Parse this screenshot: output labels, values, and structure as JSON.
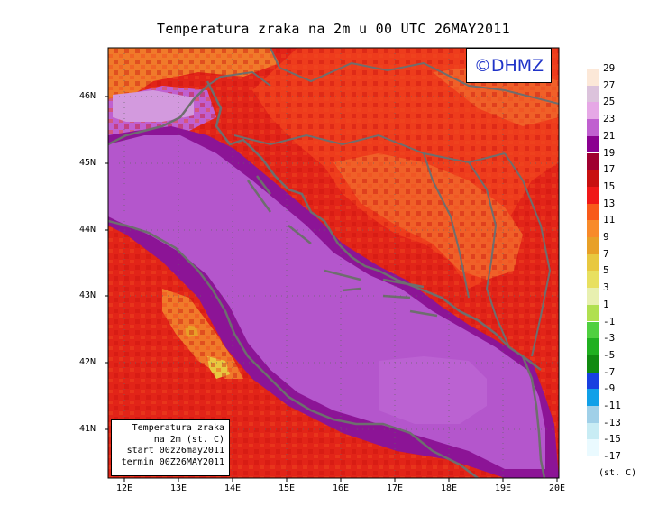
{
  "title": "Temperatura zraka na 2m u 00 UTC 26MAY2011",
  "logo": "©DHMZ",
  "info_box": {
    "line1": "Temperatura zraka",
    "line2": "na 2m (st. C)",
    "line3": "start 00z26may2011",
    "line4": "termin 00Z26MAY2011"
  },
  "latitude_labels": [
    "46N",
    "45N",
    "44N",
    "43N",
    "42N",
    "41N"
  ],
  "longitude_labels": [
    "12E",
    "13E",
    "14E",
    "15E",
    "16E",
    "17E",
    "18E",
    "19E",
    "20E"
  ],
  "legend": {
    "unit": "(st. C)",
    "labels": [
      "29",
      "27",
      "25",
      "23",
      "21",
      "19",
      "17",
      "15",
      "13",
      "11",
      "9",
      "7",
      "5",
      "3",
      "1",
      "-1",
      "-3",
      "-5",
      "-7",
      "-9",
      "-11",
      "-13",
      "-15",
      "-17"
    ],
    "colors": [
      "#fce8d8",
      "#dcc3dc",
      "#e6a8e6",
      "#c060d0",
      "#8a0090",
      "#a00030",
      "#c81010",
      "#f01818",
      "#f85a1a",
      "#f88a2a",
      "#e8a028",
      "#e8c840",
      "#e8e060",
      "#e8f0b0",
      "#b0e050",
      "#50d040",
      "#20b020",
      "#108a10",
      "#1840e0",
      "#10a0e8",
      "#a0d0e8",
      "#c8ecf4",
      "#eafaff"
    ]
  },
  "colors": {
    "sea": "#b456cc",
    "coast_sea": "#8c1496",
    "land_warm": "#e22418",
    "land_hot": "#f06028",
    "coastline": "#6e6e6e",
    "logo_text": "#1f33c8"
  }
}
